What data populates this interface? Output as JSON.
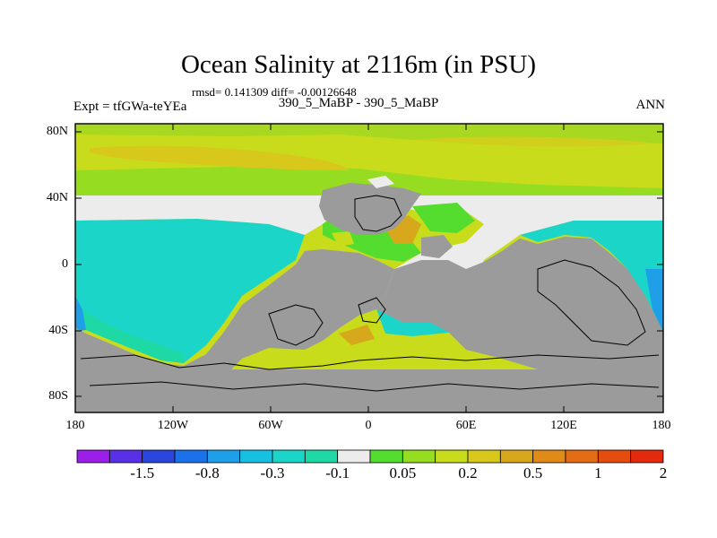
{
  "title": "Ocean Salinity at 2116m (in PSU)",
  "subtitle": "rmsd= 0.141309 diff= -0.00126648",
  "left_label": "Expt = tfGWa-teYEa",
  "center_label": "390_5_MaBP - 390_5_MaBP",
  "right_label": "ANN",
  "lat_labels": [
    "80N",
    "40N",
    "0",
    "40S",
    "80S"
  ],
  "lon_labels": [
    "180",
    "120W",
    "60W",
    "0",
    "60E",
    "120E",
    "180"
  ],
  "colorbar": {
    "labels": [
      "-1.5",
      "-0.8",
      "-0.3",
      "-0.1",
      "0.05",
      "0.2",
      "0.5",
      "1",
      "2"
    ],
    "colors": [
      "#9b1fe8",
      "#5a2fe8",
      "#2a45dc",
      "#1b72e8",
      "#1f9fe8",
      "#17bfe0",
      "#1bd6c8",
      "#1ed8a6",
      "#ececec",
      "#54dc2e",
      "#96dc20",
      "#c8dc1c",
      "#d8c81c",
      "#d8a81c",
      "#e08a18",
      "#e46c14",
      "#e44c10",
      "#e42a0c"
    ]
  },
  "colors": {
    "land": "#9b9b9b",
    "missing": "#ececec",
    "arctic": "#c8dc1c",
    "tropical": "#1bd6c8",
    "southern": "#1ed8a6",
    "green": "#54dc2e",
    "orange": "#d8a81c"
  }
}
